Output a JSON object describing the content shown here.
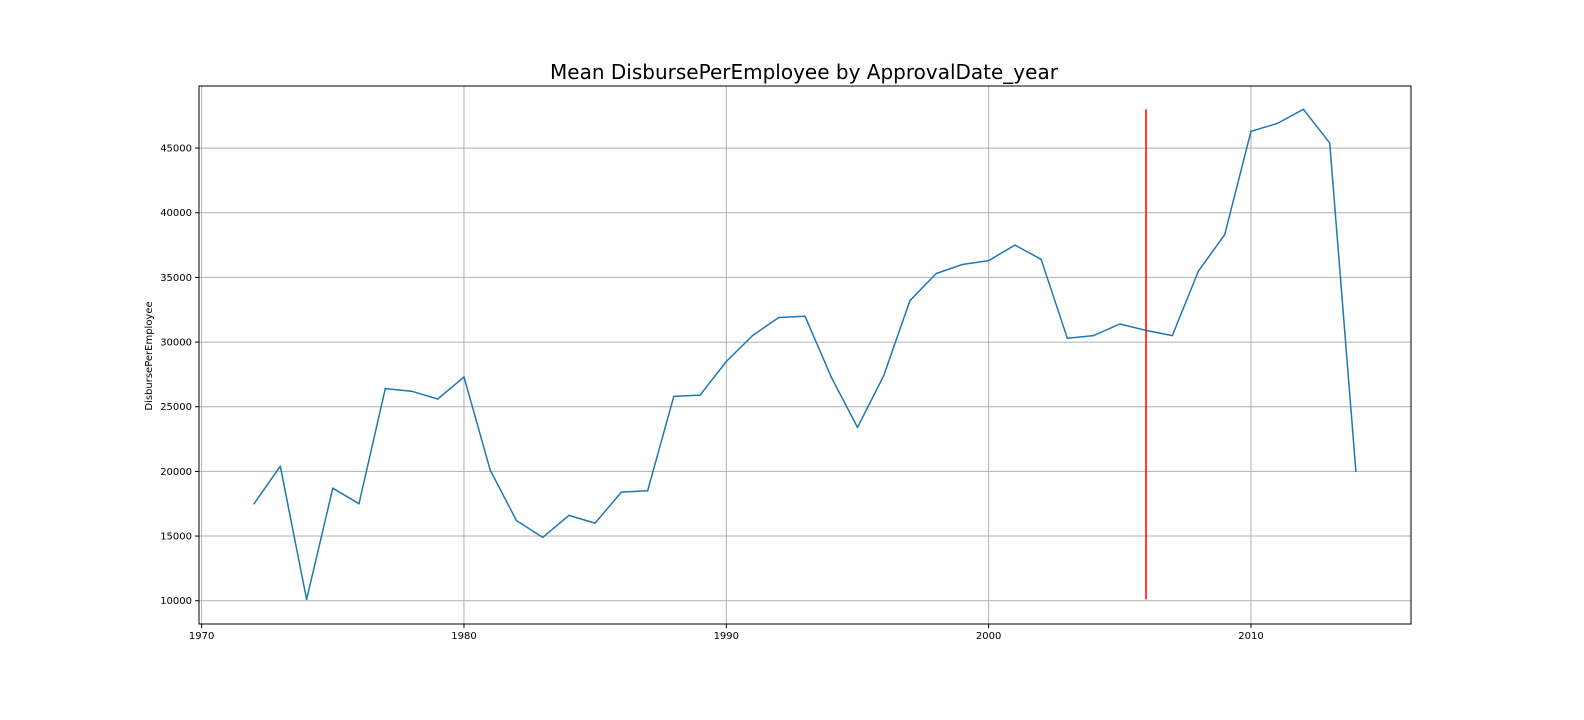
{
  "chart_data": {
    "type": "line",
    "title": "Mean DisbursePerEmployee by ApprovalDate_year",
    "xlabel": "",
    "ylabel": "DisbursePerEmployee",
    "xlim": [
      1969.9,
      2016.1
    ],
    "ylim": [
      8200,
      49800
    ],
    "x_ticks": [
      1970,
      1980,
      1990,
      2000,
      2010
    ],
    "y_ticks": [
      10000,
      15000,
      20000,
      25000,
      30000,
      35000,
      40000,
      45000
    ],
    "grid": true,
    "series": [
      {
        "color": "#1f77b4",
        "x": [
          1972,
          1973,
          1974,
          1975,
          1976,
          1977,
          1978,
          1979,
          1980,
          1981,
          1982,
          1983,
          1984,
          1985,
          1986,
          1987,
          1988,
          1989,
          1990,
          1991,
          1992,
          1993,
          1994,
          1995,
          1996,
          1997,
          1998,
          1999,
          2000,
          2001,
          2002,
          2003,
          2004,
          2005,
          2006,
          2007,
          2008,
          2009,
          2010,
          2011,
          2012,
          2013,
          2014
        ],
        "values": [
          17500,
          20400,
          10100,
          18700,
          17500,
          26400,
          26200,
          25600,
          27300,
          20100,
          16200,
          14900,
          16600,
          16000,
          18400,
          18500,
          25800,
          25900,
          28500,
          30500,
          31900,
          32000,
          27300,
          23400,
          27400,
          33200,
          35300,
          36000,
          36300,
          37500,
          36400,
          30300,
          30500,
          31400,
          30900,
          30500,
          35500,
          38300,
          46300,
          46900,
          48000,
          45400,
          20000
        ]
      }
    ],
    "vline": {
      "x": 2006,
      "ymin": 10100,
      "ymax": 48000,
      "color": "#ff0000"
    }
  }
}
